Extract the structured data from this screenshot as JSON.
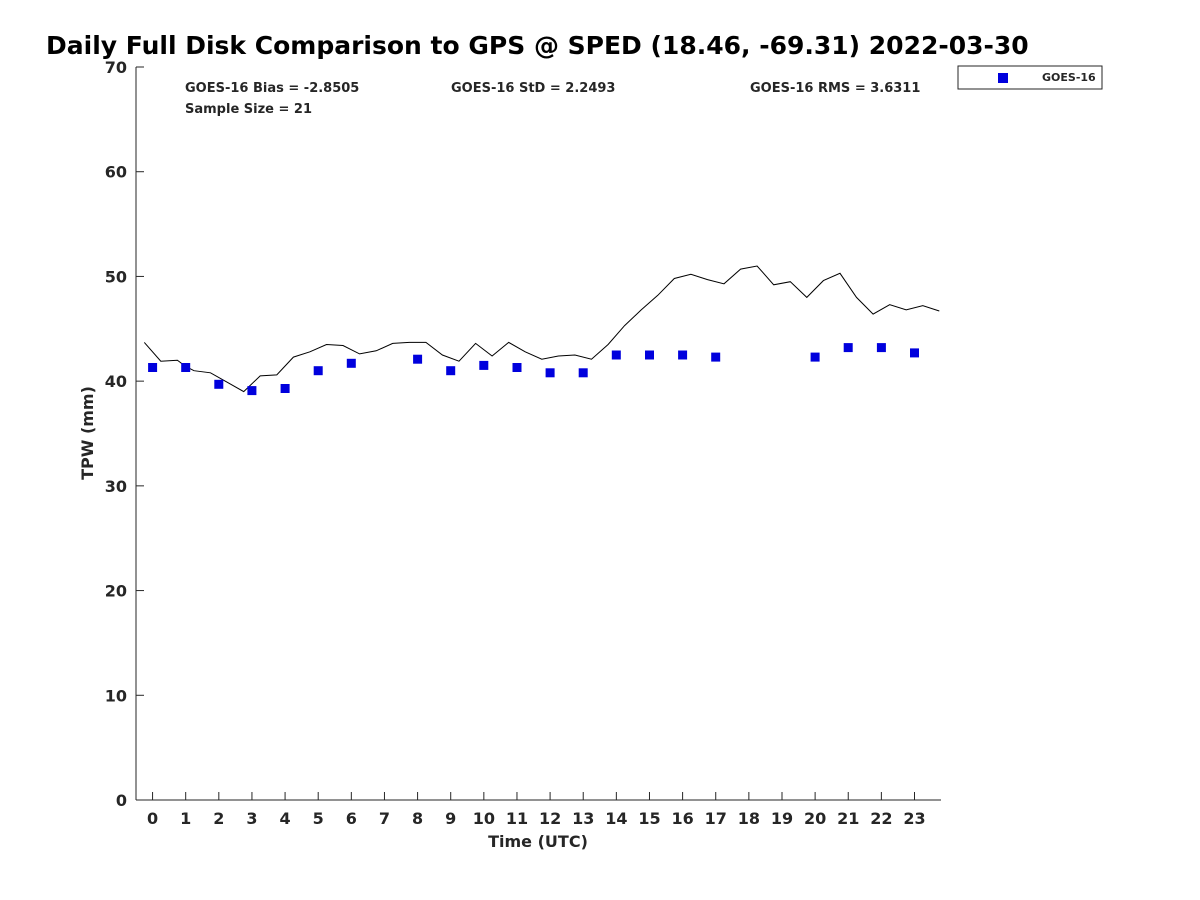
{
  "colors": {
    "marker": "#0000dd",
    "line": "#000000",
    "axis": "#262626"
  },
  "chart_data": {
    "type": "scatter",
    "title": "Daily Full Disk Comparison to GPS @ SPED (18.46, -69.31) 2022-03-30",
    "xlabel": "Time (UTC)",
    "ylabel": "TPW (mm)",
    "xlim": [
      -0.5,
      23.8
    ],
    "ylim": [
      0,
      70
    ],
    "xticks": [
      0,
      1,
      2,
      3,
      4,
      5,
      6,
      7,
      8,
      9,
      10,
      11,
      12,
      13,
      14,
      15,
      16,
      17,
      18,
      19,
      20,
      21,
      22,
      23
    ],
    "yticks": [
      0,
      10,
      20,
      30,
      40,
      50,
      60,
      70
    ],
    "grid": false,
    "legend_position": "outside-top-right",
    "stats": {
      "bias": "GOES-16 Bias = -2.8505",
      "std": "GOES-16 StD = 2.2493",
      "rms": "GOES-16 RMS = 3.6311",
      "sample": "Sample Size = 21"
    },
    "series": [
      {
        "name": "GOES-16",
        "style": "markers",
        "x": [
          0,
          1,
          2,
          3,
          4,
          5,
          6,
          8,
          9,
          10,
          11,
          12,
          13,
          14,
          15,
          16,
          17,
          20,
          21,
          22,
          23
        ],
        "y": [
          41.3,
          41.3,
          39.7,
          39.1,
          39.3,
          41.0,
          41.7,
          42.1,
          41.0,
          41.5,
          41.3,
          40.8,
          40.8,
          42.5,
          42.5,
          42.5,
          42.3,
          42.3,
          43.2,
          43.2,
          42.7
        ]
      },
      {
        "style": "line",
        "x": [
          -0.25,
          0.25,
          0.75,
          1.0,
          1.25,
          1.75,
          2.25,
          2.75,
          3.25,
          3.75,
          4.25,
          4.75,
          5.25,
          5.75,
          6.25,
          6.75,
          7.25,
          7.75,
          8.25,
          8.75,
          9.25,
          9.75,
          10.25,
          10.75,
          11.25,
          11.75,
          12.25,
          12.75,
          13.25,
          13.75,
          14.25,
          14.75,
          15.25,
          15.75,
          16.25,
          16.75,
          17.25,
          17.75,
          18.25,
          18.75,
          19.25,
          19.75,
          20.25,
          20.75,
          21.25,
          21.75,
          22.25,
          22.75,
          23.25,
          23.75
        ],
        "y": [
          43.7,
          41.9,
          42.0,
          41.4,
          41.0,
          40.8,
          39.9,
          39.0,
          40.5,
          40.6,
          42.3,
          42.8,
          43.5,
          43.4,
          42.6,
          42.9,
          43.6,
          43.7,
          43.7,
          42.5,
          41.9,
          43.6,
          42.4,
          43.7,
          42.8,
          42.1,
          42.4,
          42.5,
          42.1,
          43.5,
          45.3,
          46.8,
          48.2,
          49.8,
          50.2,
          49.7,
          49.3,
          50.7,
          51.0,
          49.2,
          49.5,
          48.0,
          49.6,
          50.3,
          48.0,
          46.4,
          47.3,
          46.8,
          47.2,
          46.7
        ]
      }
    ]
  }
}
